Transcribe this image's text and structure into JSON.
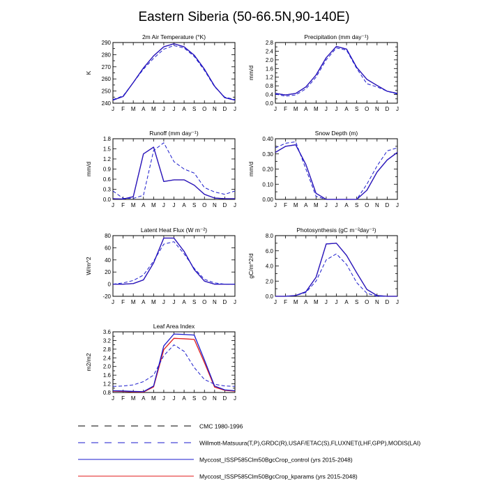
{
  "page": {
    "title": "Eastern Siberia (50-66.5N,90-140E)"
  },
  "colors": {
    "obs": "#1a1acc",
    "control": "#1a1acc",
    "kparams": "#e01a1a",
    "axis": "#000000"
  },
  "legend": {
    "entries": [
      {
        "label": "CMC 1980-1996",
        "style": "dashed",
        "color": "#000000"
      },
      {
        "label": "Willmott-Matsuura(T,P),GRDC(R),USAF/ETAC(S),FLUXNET(LHF,GPP),MODIS(LAI)",
        "style": "dashed",
        "color": "#1a1acc"
      },
      {
        "label": "Myccost_ISSP585Clm50BgcCrop_control (yrs 2015-2048)",
        "style": "solid",
        "color": "#1a1acc"
      },
      {
        "label": "Myccost_ISSP585Clm50BgcCrop_kparams (yrs 2015-2048)",
        "style": "solid",
        "color": "#e01a1a"
      }
    ]
  },
  "chart_data": [
    {
      "id": "tsa",
      "type": "line",
      "title": "2m Air Temperature (°K)",
      "ylabel": "K",
      "categories": [
        "J",
        "F",
        "M",
        "A",
        "M",
        "J",
        "J",
        "A",
        "S",
        "O",
        "N",
        "D",
        "J"
      ],
      "ylim": [
        240,
        290
      ],
      "yticks": [
        240,
        245,
        250,
        255,
        260,
        265,
        270,
        275,
        280,
        285,
        290
      ],
      "ytick_labels": [
        "240",
        "",
        "250",
        "",
        "260",
        "",
        "270",
        "",
        "280",
        "",
        "290"
      ],
      "series": [
        {
          "name": "obs",
          "style": "dashed",
          "color": "#1a1acc",
          "values": [
            243,
            246,
            257,
            268,
            277,
            284.5,
            287.5,
            285.5,
            278.5,
            267,
            253.5,
            245,
            243
          ]
        },
        {
          "name": "control",
          "style": "solid",
          "color": "#1a1acc",
          "values": [
            242.5,
            245.5,
            257,
            269,
            279,
            286.5,
            289,
            286.5,
            279.5,
            268,
            254,
            244.5,
            242.5
          ]
        },
        {
          "name": "kparams",
          "style": "solid",
          "color": "#e01a1a",
          "values": [
            242.5,
            245.5,
            257,
            269,
            279,
            286.5,
            289,
            286.5,
            279.5,
            268,
            254,
            244.5,
            242.5
          ]
        }
      ]
    },
    {
      "id": "prec",
      "type": "line",
      "title": "Precipitation (mm day⁻¹)",
      "ylabel": "mm/d",
      "categories": [
        "J",
        "F",
        "M",
        "A",
        "M",
        "J",
        "J",
        "A",
        "S",
        "O",
        "N",
        "D",
        "J"
      ],
      "ylim": [
        0,
        2.8
      ],
      "yticks": [
        0,
        0.2,
        0.4,
        0.6,
        0.8,
        1.0,
        1.2,
        1.4,
        1.6,
        1.8,
        2.0,
        2.2,
        2.4,
        2.6,
        2.8
      ],
      "ytick_labels": [
        "0.0",
        "",
        "0.4",
        "",
        "0.8",
        "",
        "1.2",
        "",
        "1.6",
        "",
        "2.0",
        "",
        "2.4",
        "",
        "2.8"
      ],
      "series": [
        {
          "name": "obs",
          "style": "dashed",
          "color": "#1a1acc",
          "values": [
            0.42,
            0.32,
            0.38,
            0.66,
            1.2,
            2.0,
            2.55,
            2.45,
            1.6,
            0.9,
            0.75,
            0.55,
            0.42
          ]
        },
        {
          "name": "control",
          "style": "solid",
          "color": "#1a1acc",
          "values": [
            0.45,
            0.38,
            0.45,
            0.75,
            1.3,
            2.1,
            2.62,
            2.5,
            1.65,
            1.1,
            0.82,
            0.55,
            0.45
          ]
        },
        {
          "name": "kparams",
          "style": "solid",
          "color": "#e01a1a",
          "values": [
            0.45,
            0.38,
            0.45,
            0.75,
            1.3,
            2.1,
            2.62,
            2.5,
            1.65,
            1.1,
            0.82,
            0.55,
            0.45
          ]
        }
      ]
    },
    {
      "id": "runoff",
      "type": "line",
      "title": "Runoff (mm day⁻¹)",
      "ylabel": "mm/d",
      "categories": [
        "J",
        "F",
        "M",
        "A",
        "M",
        "J",
        "J",
        "A",
        "S",
        "O",
        "N",
        "D",
        "J"
      ],
      "ylim": [
        0,
        1.8
      ],
      "yticks": [
        0,
        0.3,
        0.6,
        0.9,
        1.2,
        1.5,
        1.8
      ],
      "ytick_labels": [
        "0.0",
        "0.3",
        "0.6",
        "0.9",
        "1.2",
        "1.5",
        "1.8"
      ],
      "series": [
        {
          "name": "obs",
          "style": "dashed",
          "color": "#1a1acc",
          "values": [
            0.25,
            0.03,
            0.03,
            0.12,
            1.45,
            1.68,
            1.12,
            0.9,
            0.78,
            0.35,
            0.22,
            0.15,
            0.25
          ]
        },
        {
          "name": "control",
          "style": "solid",
          "color": "#1a1acc",
          "values": [
            0.02,
            0.01,
            0.08,
            1.35,
            1.55,
            0.53,
            0.58,
            0.58,
            0.42,
            0.15,
            0.04,
            0.02,
            0.02
          ]
        },
        {
          "name": "kparams",
          "style": "solid",
          "color": "#e01a1a",
          "values": [
            0.02,
            0.01,
            0.08,
            1.35,
            1.55,
            0.53,
            0.58,
            0.58,
            0.42,
            0.15,
            0.04,
            0.02,
            0.02
          ]
        }
      ]
    },
    {
      "id": "snow",
      "type": "line",
      "title": "Snow Depth (m)",
      "ylabel": "mm/d",
      "categories": [
        "J",
        "F",
        "M",
        "A",
        "M",
        "J",
        "J",
        "A",
        "S",
        "O",
        "N",
        "D",
        "J"
      ],
      "ylim": [
        0,
        0.4
      ],
      "yticks": [
        0,
        0.05,
        0.1,
        0.15,
        0.2,
        0.25,
        0.3,
        0.35,
        0.4
      ],
      "ytick_labels": [
        "0.00",
        "",
        "0.10",
        "",
        "0.20",
        "",
        "0.30",
        "",
        "0.40"
      ],
      "series": [
        {
          "name": "obs",
          "style": "dashed",
          "color": "#1a1acc",
          "values": [
            0.34,
            0.37,
            0.38,
            0.2,
            0.02,
            0.0,
            0.0,
            0.0,
            0.0,
            0.1,
            0.22,
            0.32,
            0.34
          ]
        },
        {
          "name": "control",
          "style": "solid",
          "color": "#1a1acc",
          "values": [
            0.31,
            0.35,
            0.36,
            0.23,
            0.04,
            0.0,
            0.0,
            0.0,
            0.0,
            0.06,
            0.18,
            0.26,
            0.31
          ]
        },
        {
          "name": "kparams",
          "style": "solid",
          "color": "#e01a1a",
          "values": [
            0.31,
            0.35,
            0.36,
            0.23,
            0.04,
            0.0,
            0.0,
            0.0,
            0.0,
            0.06,
            0.18,
            0.26,
            0.31
          ]
        }
      ]
    },
    {
      "id": "lhf",
      "type": "line",
      "title": "Latent Heat Flux (W m⁻²)",
      "ylabel": "W/m^2",
      "categories": [
        "J",
        "F",
        "M",
        "A",
        "M",
        "J",
        "J",
        "A",
        "S",
        "O",
        "N",
        "D",
        "J"
      ],
      "ylim": [
        -20,
        80
      ],
      "yticks": [
        -20,
        0,
        20,
        40,
        60,
        80
      ],
      "ytick_labels": [
        "-20",
        "0",
        "20",
        "40",
        "60",
        "80"
      ],
      "series": [
        {
          "name": "obs",
          "style": "dashed",
          "color": "#1a1acc",
          "values": [
            0,
            2,
            6,
            15,
            38,
            66,
            70,
            50,
            26,
            8,
            2,
            0,
            0
          ]
        },
        {
          "name": "control",
          "style": "solid",
          "color": "#1a1acc",
          "values": [
            0,
            0,
            1,
            7,
            35,
            76,
            76,
            54,
            24,
            5,
            0,
            0,
            0
          ]
        },
        {
          "name": "kparams",
          "style": "solid",
          "color": "#e01a1a",
          "values": [
            0,
            0,
            1,
            7,
            35,
            76,
            76,
            54,
            24,
            5,
            0,
            0,
            0
          ]
        }
      ]
    },
    {
      "id": "gpp",
      "type": "line",
      "title": "Photosynthesis (gC m⁻²day⁻¹)",
      "ylabel": "gC/m^2/d",
      "categories": [
        "J",
        "F",
        "M",
        "A",
        "M",
        "J",
        "J",
        "A",
        "S",
        "O",
        "N",
        "D",
        "J"
      ],
      "ylim": [
        0,
        8
      ],
      "yticks": [
        0,
        1,
        2,
        3,
        4,
        5,
        6,
        7,
        8
      ],
      "ytick_labels": [
        "0.0",
        "",
        "2.0",
        "",
        "4.0",
        "",
        "6.0",
        "",
        "8.0"
      ],
      "series": [
        {
          "name": "obs",
          "style": "dashed",
          "color": "#1a1acc",
          "values": [
            0,
            0,
            0.1,
            0.5,
            2.0,
            4.8,
            5.6,
            4.2,
            1.8,
            0.4,
            0,
            0,
            0
          ]
        },
        {
          "name": "control",
          "style": "solid",
          "color": "#1a1acc",
          "values": [
            0,
            0,
            0.1,
            0.6,
            2.5,
            6.9,
            7.0,
            5.4,
            3.1,
            0.9,
            0.1,
            0,
            0
          ]
        },
        {
          "name": "kparams",
          "style": "solid",
          "color": "#e01a1a",
          "values": [
            0,
            0,
            0.1,
            0.6,
            2.5,
            6.9,
            7.0,
            5.4,
            3.1,
            0.9,
            0.1,
            0,
            0
          ]
        }
      ]
    },
    {
      "id": "lai",
      "type": "line",
      "title": "Leaf Area Index",
      "ylabel": "m2/m2",
      "categories": [
        "J",
        "F",
        "M",
        "A",
        "M",
        "J",
        "J",
        "A",
        "S",
        "O",
        "N",
        "D",
        "J"
      ],
      "ylim": [
        0.8,
        3.6
      ],
      "yticks": [
        0.8,
        1.0,
        1.2,
        1.4,
        1.6,
        1.8,
        2.0,
        2.2,
        2.4,
        2.6,
        2.8,
        3.0,
        3.2,
        3.4,
        3.6
      ],
      "ytick_labels": [
        "0.8",
        "",
        "1.2",
        "",
        "1.6",
        "",
        "2.0",
        "",
        "2.4",
        "",
        "2.8",
        "",
        "3.2",
        "",
        "3.6"
      ],
      "series": [
        {
          "name": "obs",
          "style": "dashed",
          "color": "#1a1acc",
          "values": [
            1.08,
            1.1,
            1.15,
            1.3,
            1.6,
            2.5,
            3.0,
            2.7,
            1.95,
            1.4,
            1.18,
            1.1,
            1.08
          ]
        },
        {
          "name": "control",
          "style": "solid",
          "color": "#1a1acc",
          "values": [
            0.88,
            0.87,
            0.85,
            0.84,
            1.1,
            2.95,
            3.5,
            3.48,
            3.45,
            2.3,
            1.1,
            0.92,
            0.88
          ]
        },
        {
          "name": "kparams",
          "style": "solid",
          "color": "#e01a1a",
          "values": [
            0.86,
            0.85,
            0.83,
            0.82,
            1.06,
            2.78,
            3.3,
            3.28,
            3.25,
            2.18,
            1.05,
            0.9,
            0.86
          ]
        }
      ]
    }
  ]
}
